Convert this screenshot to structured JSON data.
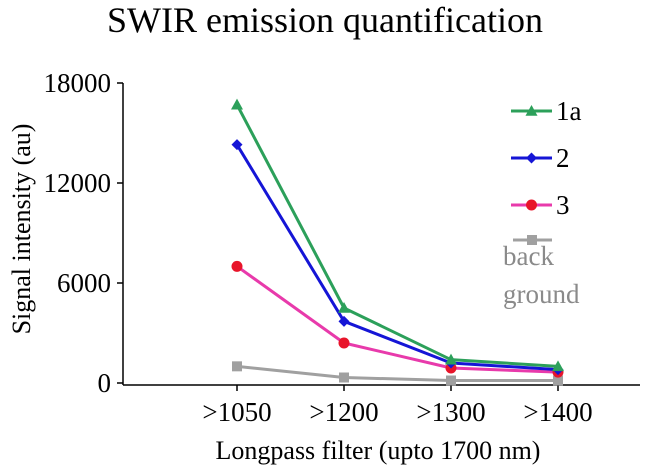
{
  "chart_data": {
    "type": "line",
    "title": "SWIR emission quantification",
    "xlabel": "Longpass filter (upto 1700 nm)",
    "ylabel": "Signal intensity (au)",
    "categories": [
      ">1050",
      ">1200",
      ">1300",
      ">1400"
    ],
    "ylim": [
      0,
      18000
    ],
    "yticks": [
      "0",
      "6000",
      "12000",
      "18000"
    ],
    "grid": false,
    "legend_position": "top-right",
    "series": [
      {
        "name": "1a",
        "values": [
          16700,
          4500,
          1400,
          1000
        ],
        "color": "#2ca05a",
        "marker": "triangle"
      },
      {
        "name": "2",
        "values": [
          14300,
          3700,
          1200,
          800
        ],
        "color": "#1515d6",
        "marker": "diamond"
      },
      {
        "name": "3",
        "values": [
          7000,
          2400,
          900,
          650
        ],
        "color": "#e83aab",
        "marker": "circle",
        "marker_color": "#e8152a"
      },
      {
        "name": "back ground",
        "label_lines": [
          "back",
          "ground"
        ],
        "values": [
          1000,
          330,
          150,
          150
        ],
        "color": "#a0a0a0",
        "marker": "square"
      }
    ]
  }
}
